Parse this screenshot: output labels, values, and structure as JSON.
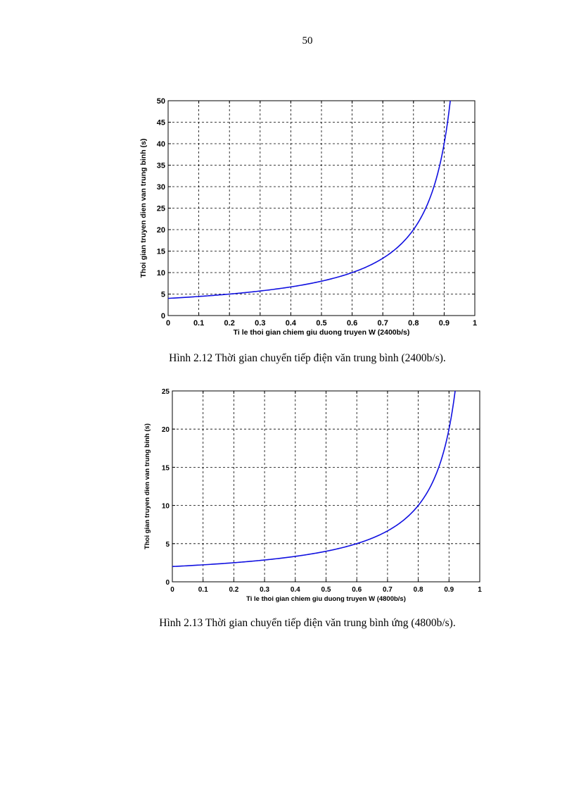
{
  "page": {
    "number": "50"
  },
  "captions": [
    "Hình 2.12 Thời gian chuyển tiếp điện văn trung bình (2400b/s).",
    "Hình 2.13 Thời gian chuyển tiếp điện văn trung bình ứng (4800b/s)."
  ],
  "chart_data": [
    {
      "type": "line",
      "title": "",
      "xlabel": "Ti le thoi gian chiem giu duong truyen W (2400b/s)",
      "ylabel": "Thoi gian truyen dien van trung binh (s)",
      "xlim": [
        0,
        1
      ],
      "ylim": [
        0,
        50
      ],
      "xticks": [
        "0",
        "0.1",
        "0.2",
        "0.3",
        "0.4",
        "0.5",
        "0.6",
        "0.7",
        "0.8",
        "0.9",
        "1"
      ],
      "yticks": [
        "0",
        "5",
        "10",
        "15",
        "20",
        "25",
        "30",
        "35",
        "40",
        "45",
        "50"
      ],
      "grid": true,
      "color": "#1010e0",
      "series": [
        {
          "name": "2400b/s",
          "x": [
            0,
            0.1,
            0.2,
            0.3,
            0.4,
            0.5,
            0.6,
            0.7,
            0.75,
            0.8,
            0.85,
            0.88,
            0.9,
            0.915,
            0.92
          ],
          "y": [
            4.0,
            4.44,
            5.0,
            5.71,
            6.67,
            8.0,
            10.0,
            13.33,
            16.0,
            20.0,
            26.67,
            33.33,
            40.0,
            47.06,
            50.0
          ]
        }
      ]
    },
    {
      "type": "line",
      "title": "",
      "xlabel": "Ti le thoi gian chiem giu duong truyen W (4800b/s)",
      "ylabel": "Thoi gian truyen dien van trung binh (s)",
      "xlim": [
        0,
        1
      ],
      "ylim": [
        0,
        25
      ],
      "xticks": [
        "0",
        "0.1",
        "0.2",
        "0.3",
        "0.4",
        "0.5",
        "0.6",
        "0.7",
        "0.8",
        "0.9",
        "1"
      ],
      "yticks": [
        "0",
        "5",
        "10",
        "15",
        "20",
        "25"
      ],
      "grid": true,
      "color": "#1010e0",
      "series": [
        {
          "name": "4800b/s",
          "x": [
            0,
            0.1,
            0.2,
            0.3,
            0.4,
            0.5,
            0.6,
            0.7,
            0.75,
            0.8,
            0.85,
            0.88,
            0.9,
            0.915,
            0.92
          ],
          "y": [
            2.0,
            2.22,
            2.5,
            2.86,
            3.33,
            4.0,
            5.0,
            6.67,
            8.0,
            10.0,
            13.33,
            16.67,
            20.0,
            23.53,
            25.0
          ]
        }
      ]
    }
  ]
}
